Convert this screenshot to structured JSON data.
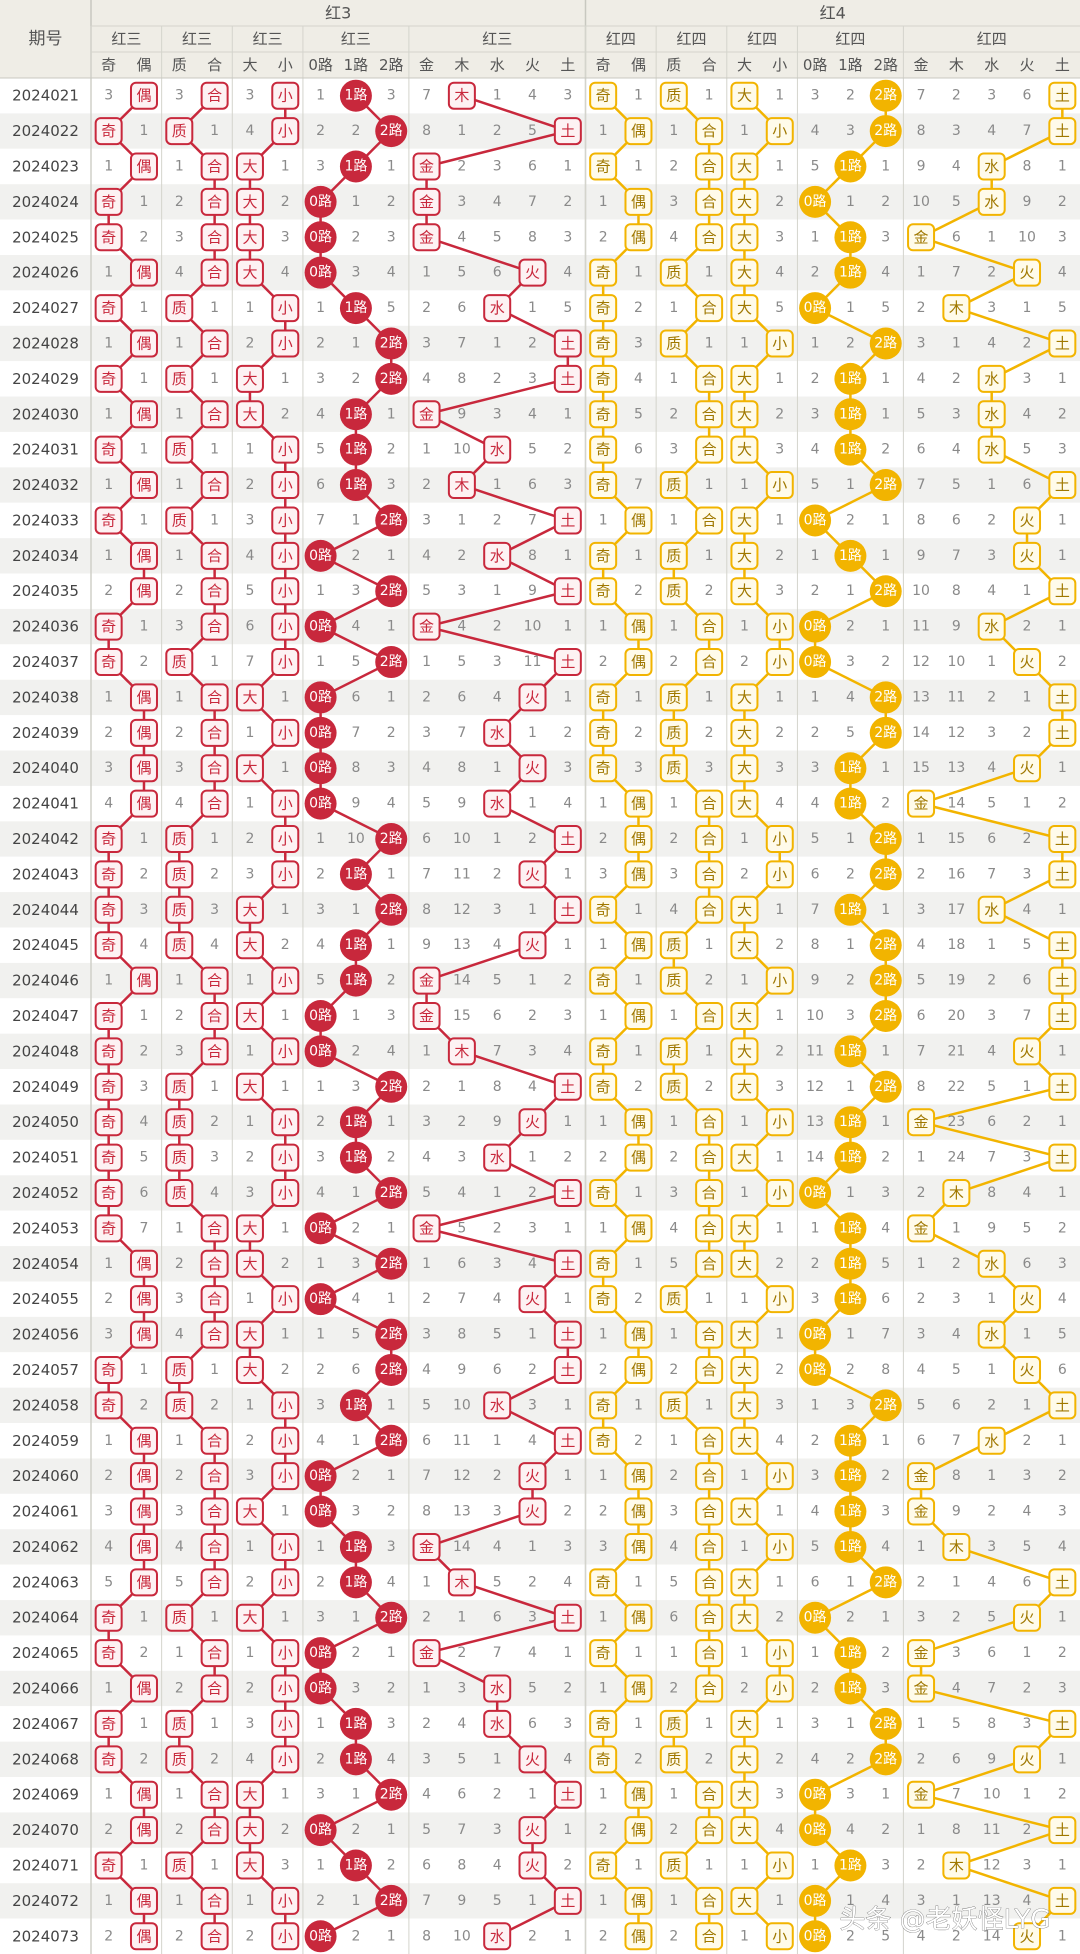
{
  "header": {
    "issue": "期号",
    "groups": [
      {
        "title": "红3",
        "subgroups": [
          {
            "title": "红三",
            "labels": [
              "奇",
              "偶"
            ]
          },
          {
            "title": "红三",
            "labels": [
              "质",
              "合"
            ]
          },
          {
            "title": "红三",
            "labels": [
              "大",
              "小"
            ]
          },
          {
            "title": "红三",
            "labels": [
              "0路",
              "1路",
              "2路"
            ]
          },
          {
            "title": "红三",
            "labels": [
              "金",
              "木",
              "水",
              "火",
              "土"
            ]
          }
        ]
      },
      {
        "title": "红4",
        "subgroups": [
          {
            "title": "红四",
            "labels": [
              "奇",
              "偶"
            ]
          },
          {
            "title": "红四",
            "labels": [
              "质",
              "合"
            ]
          },
          {
            "title": "红四",
            "labels": [
              "大",
              "小"
            ]
          },
          {
            "title": "红四",
            "labels": [
              "0路",
              "1路",
              "2路"
            ]
          },
          {
            "title": "红四",
            "labels": [
              "金",
              "木",
              "水",
              "火",
              "土"
            ]
          }
        ]
      }
    ]
  },
  "rows": [
    [
      "2024021",
      "3",
      "偶",
      "3",
      "合",
      "3",
      "小",
      "1",
      "1路",
      "3",
      "7",
      "木",
      "1",
      "4",
      "3",
      "奇",
      "1",
      "质",
      "1",
      "大",
      "1",
      "3",
      "2",
      "2路",
      "7",
      "2",
      "3",
      "6",
      "土"
    ],
    [
      "2024022",
      "奇",
      "1",
      "质",
      "1",
      "4",
      "小",
      "2",
      "2",
      "2路",
      "8",
      "1",
      "2",
      "5",
      "土",
      "1",
      "偶",
      "1",
      "合",
      "1",
      "小",
      "4",
      "3",
      "2路",
      "8",
      "3",
      "4",
      "7",
      "土"
    ],
    [
      "2024023",
      "1",
      "偶",
      "1",
      "合",
      "大",
      "1",
      "3",
      "1路",
      "1",
      "金",
      "2",
      "3",
      "6",
      "1",
      "奇",
      "1",
      "2",
      "合",
      "大",
      "1",
      "5",
      "1路",
      "1",
      "9",
      "4",
      "水",
      "8",
      "1"
    ],
    [
      "2024024",
      "奇",
      "1",
      "2",
      "合",
      "大",
      "2",
      "0路",
      "1",
      "2",
      "金",
      "3",
      "4",
      "7",
      "2",
      "1",
      "偶",
      "3",
      "合",
      "大",
      "2",
      "0路",
      "1",
      "2",
      "10",
      "5",
      "水",
      "9",
      "2"
    ],
    [
      "2024025",
      "奇",
      "2",
      "3",
      "合",
      "大",
      "3",
      "0路",
      "2",
      "3",
      "金",
      "4",
      "5",
      "8",
      "3",
      "2",
      "偶",
      "4",
      "合",
      "大",
      "3",
      "1",
      "1路",
      "3",
      "金",
      "6",
      "1",
      "10",
      "3"
    ],
    [
      "2024026",
      "1",
      "偶",
      "4",
      "合",
      "大",
      "4",
      "0路",
      "3",
      "4",
      "1",
      "5",
      "6",
      "火",
      "4",
      "奇",
      "1",
      "质",
      "1",
      "大",
      "4",
      "2",
      "1路",
      "4",
      "1",
      "7",
      "2",
      "火",
      "4"
    ],
    [
      "2024027",
      "奇",
      "1",
      "质",
      "1",
      "1",
      "小",
      "1",
      "1路",
      "5",
      "2",
      "6",
      "水",
      "1",
      "5",
      "奇",
      "2",
      "1",
      "合",
      "大",
      "5",
      "0路",
      "1",
      "5",
      "2",
      "木",
      "3",
      "1",
      "5"
    ],
    [
      "2024028",
      "1",
      "偶",
      "1",
      "合",
      "2",
      "小",
      "2",
      "1",
      "2路",
      "3",
      "7",
      "1",
      "2",
      "土",
      "奇",
      "3",
      "质",
      "1",
      "1",
      "小",
      "1",
      "2",
      "2路",
      "3",
      "1",
      "4",
      "2",
      "土"
    ],
    [
      "2024029",
      "奇",
      "1",
      "质",
      "1",
      "大",
      "1",
      "3",
      "2",
      "2路",
      "4",
      "8",
      "2",
      "3",
      "土",
      "奇",
      "4",
      "1",
      "合",
      "大",
      "1",
      "2",
      "1路",
      "1",
      "4",
      "2",
      "水",
      "3",
      "1"
    ],
    [
      "2024030",
      "1",
      "偶",
      "1",
      "合",
      "大",
      "2",
      "4",
      "1路",
      "1",
      "金",
      "9",
      "3",
      "4",
      "1",
      "奇",
      "5",
      "2",
      "合",
      "大",
      "2",
      "3",
      "1路",
      "1",
      "5",
      "3",
      "水",
      "4",
      "2"
    ],
    [
      "2024031",
      "奇",
      "1",
      "质",
      "1",
      "1",
      "小",
      "5",
      "1路",
      "2",
      "1",
      "10",
      "水",
      "5",
      "2",
      "奇",
      "6",
      "3",
      "合",
      "大",
      "3",
      "4",
      "1路",
      "2",
      "6",
      "4",
      "水",
      "5",
      "3"
    ],
    [
      "2024032",
      "1",
      "偶",
      "1",
      "合",
      "2",
      "小",
      "6",
      "1路",
      "3",
      "2",
      "木",
      "1",
      "6",
      "3",
      "奇",
      "7",
      "质",
      "1",
      "1",
      "小",
      "5",
      "1",
      "2路",
      "7",
      "5",
      "1",
      "6",
      "土"
    ],
    [
      "2024033",
      "奇",
      "1",
      "质",
      "1",
      "3",
      "小",
      "7",
      "1",
      "2路",
      "3",
      "1",
      "2",
      "7",
      "土",
      "1",
      "偶",
      "1",
      "合",
      "大",
      "1",
      "0路",
      "2",
      "1",
      "8",
      "6",
      "2",
      "火",
      "1"
    ],
    [
      "2024034",
      "1",
      "偶",
      "1",
      "合",
      "4",
      "小",
      "0路",
      "2",
      "1",
      "4",
      "2",
      "水",
      "8",
      "1",
      "奇",
      "1",
      "质",
      "1",
      "大",
      "2",
      "1",
      "1路",
      "1",
      "9",
      "7",
      "3",
      "火",
      "1"
    ],
    [
      "2024035",
      "2",
      "偶",
      "2",
      "合",
      "5",
      "小",
      "1",
      "3",
      "2路",
      "5",
      "3",
      "1",
      "9",
      "土",
      "奇",
      "2",
      "质",
      "2",
      "大",
      "3",
      "2",
      "1",
      "2路",
      "10",
      "8",
      "4",
      "1",
      "土"
    ],
    [
      "2024036",
      "奇",
      "1",
      "3",
      "合",
      "6",
      "小",
      "0路",
      "4",
      "1",
      "金",
      "4",
      "2",
      "10",
      "1",
      "1",
      "偶",
      "1",
      "合",
      "1",
      "小",
      "0路",
      "2",
      "1",
      "11",
      "9",
      "水",
      "2",
      "1"
    ],
    [
      "2024037",
      "奇",
      "2",
      "质",
      "1",
      "7",
      "小",
      "1",
      "5",
      "2路",
      "1",
      "5",
      "3",
      "11",
      "土",
      "2",
      "偶",
      "2",
      "合",
      "2",
      "小",
      "0路",
      "3",
      "2",
      "12",
      "10",
      "1",
      "火",
      "2"
    ],
    [
      "2024038",
      "1",
      "偶",
      "1",
      "合",
      "大",
      "1",
      "0路",
      "6",
      "1",
      "2",
      "6",
      "4",
      "火",
      "1",
      "奇",
      "1",
      "质",
      "1",
      "大",
      "1",
      "1",
      "4",
      "2路",
      "13",
      "11",
      "2",
      "1",
      "土"
    ],
    [
      "2024039",
      "2",
      "偶",
      "2",
      "合",
      "1",
      "小",
      "0路",
      "7",
      "2",
      "3",
      "7",
      "水",
      "1",
      "2",
      "奇",
      "2",
      "质",
      "2",
      "大",
      "2",
      "2",
      "5",
      "2路",
      "14",
      "12",
      "3",
      "2",
      "土"
    ],
    [
      "2024040",
      "3",
      "偶",
      "3",
      "合",
      "大",
      "1",
      "0路",
      "8",
      "3",
      "4",
      "8",
      "1",
      "火",
      "3",
      "奇",
      "3",
      "质",
      "3",
      "大",
      "3",
      "3",
      "1路",
      "1",
      "15",
      "13",
      "4",
      "火",
      "1"
    ],
    [
      "2024041",
      "4",
      "偶",
      "4",
      "合",
      "1",
      "小",
      "0路",
      "9",
      "4",
      "5",
      "9",
      "水",
      "1",
      "4",
      "1",
      "偶",
      "1",
      "合",
      "大",
      "4",
      "4",
      "1路",
      "2",
      "金",
      "14",
      "5",
      "1",
      "2"
    ],
    [
      "2024042",
      "奇",
      "1",
      "质",
      "1",
      "2",
      "小",
      "1",
      "10",
      "2路",
      "6",
      "10",
      "1",
      "2",
      "土",
      "2",
      "偶",
      "2",
      "合",
      "1",
      "小",
      "5",
      "1",
      "2路",
      "1",
      "15",
      "6",
      "2",
      "土"
    ],
    [
      "2024043",
      "奇",
      "2",
      "质",
      "2",
      "3",
      "小",
      "2",
      "1路",
      "1",
      "7",
      "11",
      "2",
      "火",
      "1",
      "3",
      "偶",
      "3",
      "合",
      "2",
      "小",
      "6",
      "2",
      "2路",
      "2",
      "16",
      "7",
      "3",
      "土"
    ],
    [
      "2024044",
      "奇",
      "3",
      "质",
      "3",
      "大",
      "1",
      "3",
      "1",
      "2路",
      "8",
      "12",
      "3",
      "1",
      "土",
      "奇",
      "1",
      "4",
      "合",
      "大",
      "1",
      "7",
      "1路",
      "1",
      "3",
      "17",
      "水",
      "4",
      "1"
    ],
    [
      "2024045",
      "奇",
      "4",
      "质",
      "4",
      "大",
      "2",
      "4",
      "1路",
      "1",
      "9",
      "13",
      "4",
      "火",
      "1",
      "1",
      "偶",
      "质",
      "1",
      "大",
      "2",
      "8",
      "1",
      "2路",
      "4",
      "18",
      "1",
      "5",
      "土"
    ],
    [
      "2024046",
      "1",
      "偶",
      "1",
      "合",
      "1",
      "小",
      "5",
      "1路",
      "2",
      "金",
      "14",
      "5",
      "1",
      "2",
      "奇",
      "1",
      "质",
      "2",
      "1",
      "小",
      "9",
      "2",
      "2路",
      "5",
      "19",
      "2",
      "6",
      "土"
    ],
    [
      "2024047",
      "奇",
      "1",
      "2",
      "合",
      "大",
      "1",
      "0路",
      "1",
      "3",
      "金",
      "15",
      "6",
      "2",
      "3",
      "1",
      "偶",
      "1",
      "合",
      "大",
      "1",
      "10",
      "3",
      "2路",
      "6",
      "20",
      "3",
      "7",
      "土"
    ],
    [
      "2024048",
      "奇",
      "2",
      "3",
      "合",
      "1",
      "小",
      "0路",
      "2",
      "4",
      "1",
      "木",
      "7",
      "3",
      "4",
      "奇",
      "1",
      "质",
      "1",
      "大",
      "2",
      "11",
      "1路",
      "1",
      "7",
      "21",
      "4",
      "火",
      "1"
    ],
    [
      "2024049",
      "奇",
      "3",
      "质",
      "1",
      "大",
      "1",
      "1",
      "3",
      "2路",
      "2",
      "1",
      "8",
      "4",
      "土",
      "奇",
      "2",
      "质",
      "2",
      "大",
      "3",
      "12",
      "1",
      "2路",
      "8",
      "22",
      "5",
      "1",
      "土"
    ],
    [
      "2024050",
      "奇",
      "4",
      "质",
      "2",
      "1",
      "小",
      "2",
      "1路",
      "1",
      "3",
      "2",
      "9",
      "火",
      "1",
      "1",
      "偶",
      "1",
      "合",
      "1",
      "小",
      "13",
      "1路",
      "1",
      "金",
      "23",
      "6",
      "2",
      "1"
    ],
    [
      "2024051",
      "奇",
      "5",
      "质",
      "3",
      "2",
      "小",
      "3",
      "1路",
      "2",
      "4",
      "3",
      "水",
      "1",
      "2",
      "2",
      "偶",
      "2",
      "合",
      "大",
      "1",
      "14",
      "1路",
      "2",
      "1",
      "24",
      "7",
      "3",
      "土"
    ],
    [
      "2024052",
      "奇",
      "6",
      "质",
      "4",
      "3",
      "小",
      "4",
      "1",
      "2路",
      "5",
      "4",
      "1",
      "2",
      "土",
      "奇",
      "1",
      "3",
      "合",
      "1",
      "小",
      "0路",
      "1",
      "3",
      "2",
      "木",
      "8",
      "4",
      "1"
    ],
    [
      "2024053",
      "奇",
      "7",
      "1",
      "合",
      "大",
      "1",
      "0路",
      "2",
      "1",
      "金",
      "5",
      "2",
      "3",
      "1",
      "1",
      "偶",
      "4",
      "合",
      "大",
      "1",
      "1",
      "1路",
      "4",
      "金",
      "1",
      "9",
      "5",
      "2"
    ],
    [
      "2024054",
      "1",
      "偶",
      "2",
      "合",
      "大",
      "2",
      "1",
      "3",
      "2路",
      "1",
      "6",
      "3",
      "4",
      "土",
      "奇",
      "1",
      "5",
      "合",
      "大",
      "2",
      "2",
      "1路",
      "5",
      "1",
      "2",
      "水",
      "6",
      "3"
    ],
    [
      "2024055",
      "2",
      "偶",
      "3",
      "合",
      "1",
      "小",
      "0路",
      "4",
      "1",
      "2",
      "7",
      "4",
      "火",
      "1",
      "奇",
      "2",
      "质",
      "1",
      "1",
      "小",
      "3",
      "1路",
      "6",
      "2",
      "3",
      "1",
      "火",
      "4"
    ],
    [
      "2024056",
      "3",
      "偶",
      "4",
      "合",
      "大",
      "1",
      "1",
      "5",
      "2路",
      "3",
      "8",
      "5",
      "1",
      "土",
      "1",
      "偶",
      "1",
      "合",
      "大",
      "1",
      "0路",
      "1",
      "7",
      "3",
      "4",
      "水",
      "1",
      "5"
    ],
    [
      "2024057",
      "奇",
      "1",
      "质",
      "1",
      "大",
      "2",
      "2",
      "6",
      "2路",
      "4",
      "9",
      "6",
      "2",
      "土",
      "2",
      "偶",
      "2",
      "合",
      "大",
      "2",
      "0路",
      "2",
      "8",
      "4",
      "5",
      "1",
      "火",
      "6"
    ],
    [
      "2024058",
      "奇",
      "2",
      "质",
      "2",
      "1",
      "小",
      "3",
      "1路",
      "1",
      "5",
      "10",
      "水",
      "3",
      "1",
      "奇",
      "1",
      "质",
      "1",
      "大",
      "3",
      "1",
      "3",
      "2路",
      "5",
      "6",
      "2",
      "1",
      "土"
    ],
    [
      "2024059",
      "1",
      "偶",
      "1",
      "合",
      "2",
      "小",
      "4",
      "1",
      "2路",
      "6",
      "11",
      "1",
      "4",
      "土",
      "奇",
      "2",
      "1",
      "合",
      "大",
      "4",
      "2",
      "1路",
      "1",
      "6",
      "7",
      "水",
      "2",
      "1"
    ],
    [
      "2024060",
      "2",
      "偶",
      "2",
      "合",
      "3",
      "小",
      "0路",
      "2",
      "1",
      "7",
      "12",
      "2",
      "火",
      "1",
      "1",
      "偶",
      "2",
      "合",
      "1",
      "小",
      "3",
      "1路",
      "2",
      "金",
      "8",
      "1",
      "3",
      "2"
    ],
    [
      "2024061",
      "3",
      "偶",
      "3",
      "合",
      "大",
      "1",
      "0路",
      "3",
      "2",
      "8",
      "13",
      "3",
      "火",
      "2",
      "2",
      "偶",
      "3",
      "合",
      "大",
      "1",
      "4",
      "1路",
      "3",
      "金",
      "9",
      "2",
      "4",
      "3"
    ],
    [
      "2024062",
      "4",
      "偶",
      "4",
      "合",
      "1",
      "小",
      "1",
      "1路",
      "3",
      "金",
      "14",
      "4",
      "1",
      "3",
      "3",
      "偶",
      "4",
      "合",
      "1",
      "小",
      "5",
      "1路",
      "4",
      "1",
      "木",
      "3",
      "5",
      "4"
    ],
    [
      "2024063",
      "5",
      "偶",
      "5",
      "合",
      "2",
      "小",
      "2",
      "1路",
      "4",
      "1",
      "木",
      "5",
      "2",
      "4",
      "奇",
      "1",
      "5",
      "合",
      "大",
      "1",
      "6",
      "1",
      "2路",
      "2",
      "1",
      "4",
      "6",
      "土"
    ],
    [
      "2024064",
      "奇",
      "1",
      "质",
      "1",
      "大",
      "1",
      "3",
      "1",
      "2路",
      "2",
      "1",
      "6",
      "3",
      "土",
      "1",
      "偶",
      "6",
      "合",
      "大",
      "2",
      "0路",
      "2",
      "1",
      "3",
      "2",
      "5",
      "火",
      "1"
    ],
    [
      "2024065",
      "奇",
      "2",
      "1",
      "合",
      "1",
      "小",
      "0路",
      "2",
      "1",
      "金",
      "2",
      "7",
      "4",
      "1",
      "奇",
      "1",
      "1",
      "合",
      "1",
      "小",
      "1",
      "1路",
      "2",
      "金",
      "3",
      "6",
      "1",
      "2"
    ],
    [
      "2024066",
      "1",
      "偶",
      "2",
      "合",
      "2",
      "小",
      "0路",
      "3",
      "2",
      "1",
      "3",
      "水",
      "5",
      "2",
      "1",
      "偶",
      "2",
      "合",
      "2",
      "小",
      "2",
      "1路",
      "3",
      "金",
      "4",
      "7",
      "2",
      "3"
    ],
    [
      "2024067",
      "奇",
      "1",
      "质",
      "1",
      "3",
      "小",
      "1",
      "1路",
      "3",
      "2",
      "4",
      "水",
      "6",
      "3",
      "奇",
      "1",
      "质",
      "1",
      "大",
      "1",
      "3",
      "1",
      "2路",
      "1",
      "5",
      "8",
      "3",
      "土"
    ],
    [
      "2024068",
      "奇",
      "2",
      "质",
      "2",
      "4",
      "小",
      "2",
      "1路",
      "4",
      "3",
      "5",
      "1",
      "火",
      "4",
      "奇",
      "2",
      "质",
      "2",
      "大",
      "2",
      "4",
      "2",
      "2路",
      "2",
      "6",
      "9",
      "火",
      "1"
    ],
    [
      "2024069",
      "1",
      "偶",
      "1",
      "合",
      "大",
      "1",
      "3",
      "1",
      "2路",
      "4",
      "6",
      "2",
      "1",
      "土",
      "1",
      "偶",
      "1",
      "合",
      "大",
      "3",
      "0路",
      "3",
      "1",
      "金",
      "7",
      "10",
      "1",
      "2"
    ],
    [
      "2024070",
      "2",
      "偶",
      "2",
      "合",
      "大",
      "2",
      "0路",
      "2",
      "1",
      "5",
      "7",
      "3",
      "火",
      "1",
      "2",
      "偶",
      "2",
      "合",
      "大",
      "4",
      "0路",
      "4",
      "2",
      "1",
      "8",
      "11",
      "2",
      "土"
    ],
    [
      "2024071",
      "奇",
      "1",
      "质",
      "1",
      "大",
      "3",
      "1",
      "1路",
      "2",
      "6",
      "8",
      "4",
      "火",
      "2",
      "奇",
      "1",
      "质",
      "1",
      "1",
      "小",
      "1",
      "1路",
      "3",
      "2",
      "木",
      "12",
      "3",
      "1"
    ],
    [
      "2024072",
      "1",
      "偶",
      "1",
      "合",
      "1",
      "小",
      "2",
      "1",
      "2路",
      "7",
      "9",
      "5",
      "1",
      "土",
      "1",
      "偶",
      "1",
      "合",
      "大",
      "1",
      "0路",
      "1",
      "4",
      "3",
      "1",
      "13",
      "4",
      "土"
    ],
    [
      "2024073",
      "2",
      "偶",
      "2",
      "合",
      "2",
      "小",
      "0路",
      "2",
      "1",
      "8",
      "10",
      "水",
      "2",
      "1",
      "2",
      "偶",
      "2",
      "合",
      "1",
      "小",
      "0路",
      "2",
      "5",
      "4",
      "2",
      "14",
      "火",
      "1"
    ]
  ],
  "watermark": "头条 @老妖怪LYG"
}
